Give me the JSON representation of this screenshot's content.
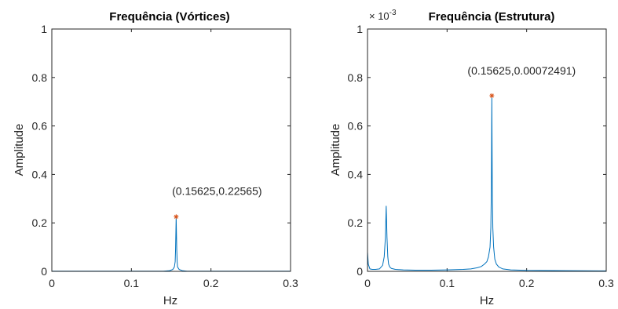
{
  "figure": {
    "panels": [
      {
        "title": "Frequência (Vórtices)",
        "xlabel": "Hz",
        "ylabel": "Amplitude",
        "exponent_label": "",
        "xticks": [
          "0",
          "0.1",
          "0.2",
          "0.3"
        ],
        "yticks": [
          "0",
          "0.2",
          "0.4",
          "0.6",
          "0.8",
          "1"
        ],
        "annotation": "(0.15625,0.22565)"
      },
      {
        "title": "Frequência (Estrutura)",
        "xlabel": "Hz",
        "ylabel": "Amplitude",
        "exponent_label": "× 10",
        "exponent_power": "-3",
        "xticks": [
          "0",
          "0.1",
          "0.2",
          "0.3"
        ],
        "yticks": [
          "0",
          "0.2",
          "0.4",
          "0.6",
          "0.8",
          "1"
        ],
        "annotation": "(0.15625,0.00072491)"
      }
    ]
  },
  "chart_data": [
    {
      "type": "line",
      "title": "Frequência (Vórtices)",
      "xlabel": "Hz",
      "ylabel": "Amplitude",
      "xlim": [
        0,
        0.3
      ],
      "ylim": [
        0,
        1
      ],
      "grid": false,
      "color": "#0072BD",
      "marker_color": "#D95319",
      "series": [
        {
          "x": [
            0,
            0.14,
            0.148,
            0.152,
            0.154,
            0.155,
            0.1555,
            0.15625,
            0.157,
            0.1575,
            0.158,
            0.16,
            0.164,
            0.17,
            0.3
          ],
          "y": [
            0.001,
            0.001,
            0.003,
            0.008,
            0.018,
            0.04,
            0.09,
            0.22565,
            0.09,
            0.04,
            0.018,
            0.008,
            0.003,
            0.001,
            0.001
          ]
        }
      ],
      "peak": {
        "x": 0.15625,
        "y": 0.22565
      },
      "annotation": "(0.15625,0.22565)"
    },
    {
      "type": "line",
      "title": "Frequência (Estrutura)",
      "xlabel": "Hz",
      "ylabel": "Amplitude",
      "xlim": [
        0,
        0.3
      ],
      "ylim": [
        0,
        0.001
      ],
      "y_exponent": -3,
      "grid": false,
      "color": "#0072BD",
      "marker_color": "#D95319",
      "series": [
        {
          "x": [
            0,
            0.001,
            0.003,
            0.006,
            0.01,
            0.015,
            0.019,
            0.021,
            0.0225,
            0.0235,
            0.0245,
            0.0255,
            0.0265,
            0.028,
            0.03,
            0.035,
            0.045,
            0.06,
            0.08,
            0.1,
            0.12,
            0.13,
            0.138,
            0.143,
            0.147,
            0.15,
            0.152,
            0.154,
            0.155,
            0.1557,
            0.15625,
            0.1568,
            0.1575,
            0.1585,
            0.16,
            0.162,
            0.165,
            0.17,
            0.18,
            0.2,
            0.25,
            0.3
          ],
          "y": [
            8e-05,
            3e-05,
            1e-05,
            8e-06,
            8e-06,
            1e-05,
            2.5e-05,
            6e-05,
            0.00014,
            0.00027,
            0.00014,
            6e-05,
            3e-05,
            1.8e-05,
            1.2e-05,
            8e-06,
            6e-06,
            5e-06,
            5e-06,
            6e-06,
            8e-06,
            1e-05,
            1.5e-05,
            2e-05,
            3e-05,
            4e-05,
            6e-05,
            0.0001,
            0.00018,
            0.00035,
            0.00072491,
            0.00035,
            0.00018,
            0.0001,
            5e-05,
            3e-05,
            1.8e-05,
            1e-05,
            6e-06,
            4e-06,
            3e-06,
            2e-06
          ]
        }
      ],
      "peak": {
        "x": 0.15625,
        "y": 0.00072491
      },
      "annotation": "(0.15625,0.00072491)"
    }
  ]
}
